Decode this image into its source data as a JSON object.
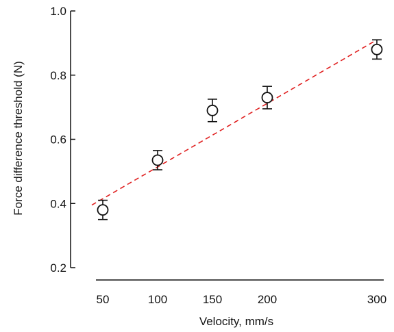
{
  "chart_data": {
    "type": "scatter",
    "title": "",
    "xlabel": "Velocity, mm/s",
    "ylabel": "Force difference threshold (N)",
    "xlim": [
      40,
      310
    ],
    "ylim": [
      0.2,
      1.0
    ],
    "x_ticks": [
      50,
      100,
      150,
      200,
      300
    ],
    "x_tick_labels": [
      "50",
      "100",
      "150",
      "200",
      "300"
    ],
    "y_ticks": [
      0.2,
      0.4,
      0.6,
      0.8,
      1.0
    ],
    "y_tick_labels": [
      "0.2",
      "0.4",
      "0.6",
      "0.8",
      "1.0"
    ],
    "grid": false,
    "points": [
      {
        "x": 50,
        "y": 0.38,
        "err_low": 0.35,
        "err_high": 0.41
      },
      {
        "x": 100,
        "y": 0.535,
        "err_low": 0.505,
        "err_high": 0.565
      },
      {
        "x": 150,
        "y": 0.69,
        "err_low": 0.655,
        "err_high": 0.725
      },
      {
        "x": 200,
        "y": 0.73,
        "err_low": 0.695,
        "err_high": 0.765
      },
      {
        "x": 300,
        "y": 0.88,
        "err_low": 0.85,
        "err_high": 0.91
      }
    ],
    "fit_line": {
      "x": [
        40,
        300
      ],
      "y": [
        0.395,
        0.91
      ],
      "color": "#e02020",
      "style": "dashed"
    },
    "colors": {
      "marker": "#111111",
      "fit": "#e02020"
    }
  }
}
